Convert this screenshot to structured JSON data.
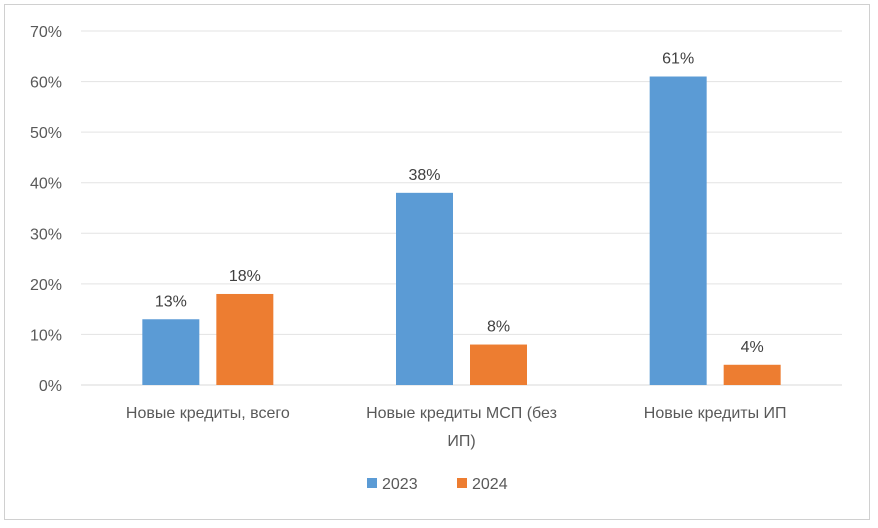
{
  "chart_data": {
    "type": "bar",
    "categories": [
      [
        "Новые кредиты, всего"
      ],
      [
        "Новые кредиты МСП (без",
        "ИП)"
      ],
      [
        "Новые кредиты ИП"
      ]
    ],
    "series": [
      {
        "name": "2023",
        "color": "#5B9BD5",
        "values": [
          13,
          38,
          61
        ]
      },
      {
        "name": "2024",
        "color": "#ED7D31",
        "values": [
          18,
          8,
          4
        ]
      }
    ],
    "data_labels": [
      [
        "13%",
        "38%",
        "61%"
      ],
      [
        "18%",
        "8%",
        "4%"
      ]
    ],
    "ylim": [
      0,
      70
    ],
    "yticks": [
      "0%",
      "10%",
      "20%",
      "30%",
      "40%",
      "50%",
      "60%",
      "70%"
    ],
    "grid": true,
    "legend": "bottom"
  }
}
